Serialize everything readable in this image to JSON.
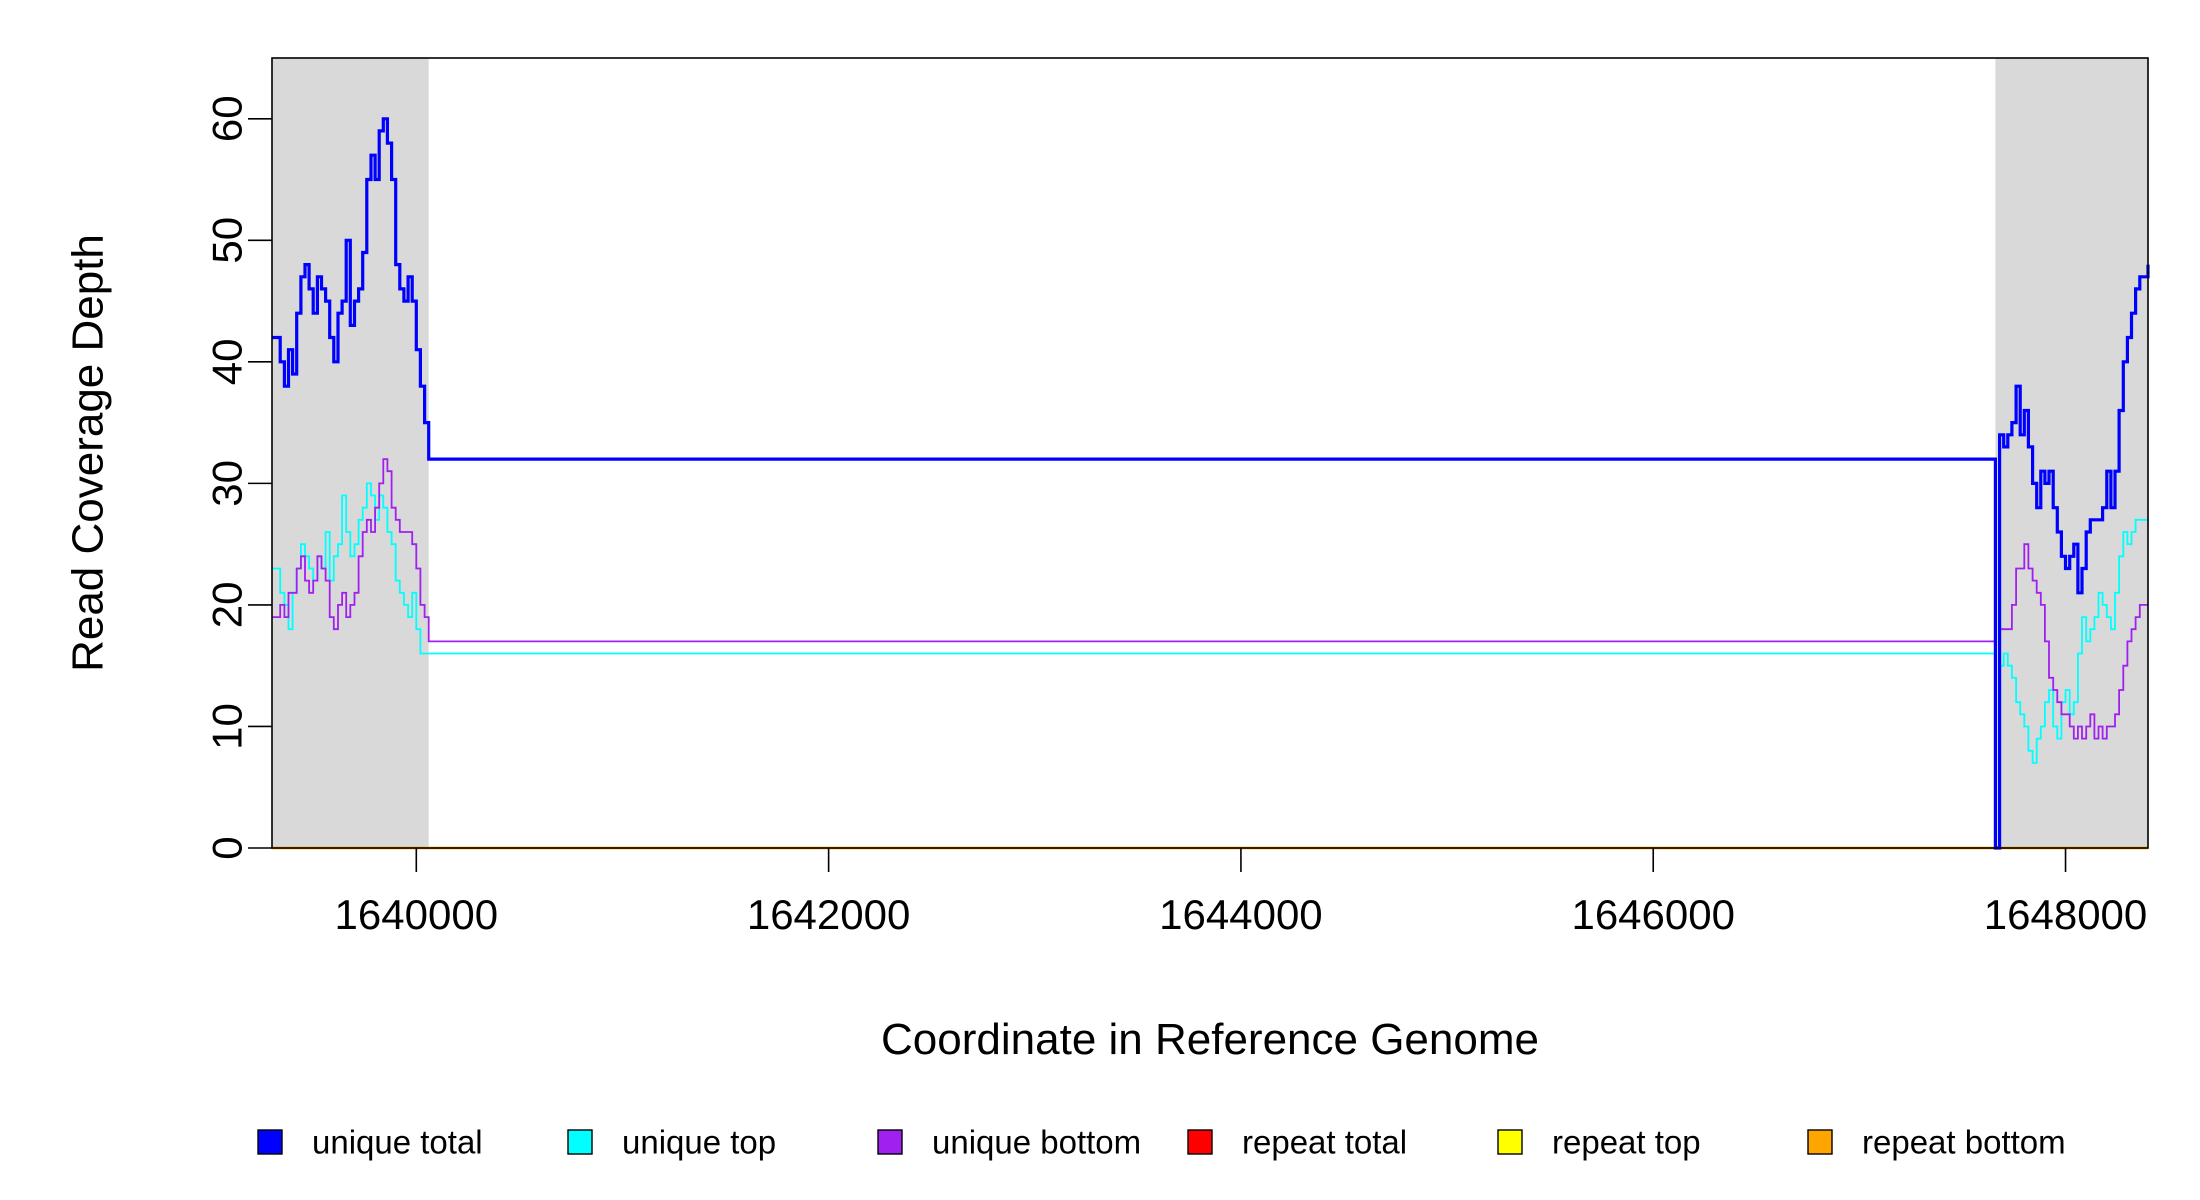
{
  "chart_data": {
    "type": "line",
    "title": "",
    "xlabel": "Coordinate in Reference Genome",
    "ylabel": "Read Coverage Depth",
    "xlim": [
      1639300,
      1648400
    ],
    "ylim": [
      0,
      65
    ],
    "x_ticks": [
      1640000,
      1642000,
      1644000,
      1646000,
      1648000
    ],
    "x_tick_labels": [
      "1640000",
      "1642000",
      "1644000",
      "1646000",
      "1648000"
    ],
    "y_ticks": [
      0,
      10,
      20,
      30,
      40,
      50,
      60
    ],
    "y_tick_labels": [
      "0",
      "10",
      "20",
      "30",
      "40",
      "50",
      "60"
    ],
    "grid": false,
    "legend_position": "bottom",
    "shaded_regions": [
      {
        "x_start": 1639300,
        "x_end": 1640060,
        "color": "#d9d9d9"
      },
      {
        "x_start": 1647660,
        "x_end": 1648400,
        "color": "#d9d9d9"
      }
    ],
    "series": [
      {
        "name": "unique total",
        "color": "#0000ff",
        "step": true,
        "x": [
          1639300,
          1639340,
          1639360,
          1639380,
          1639400,
          1639420,
          1639440,
          1639460,
          1639480,
          1639500,
          1639520,
          1639540,
          1639560,
          1639580,
          1639600,
          1639620,
          1639640,
          1639660,
          1639680,
          1639700,
          1639720,
          1639740,
          1639760,
          1639780,
          1639800,
          1639820,
          1639840,
          1639860,
          1639880,
          1639900,
          1639920,
          1639940,
          1639960,
          1639980,
          1640000,
          1640020,
          1640040,
          1640060,
          1647660,
          1647680,
          1647700,
          1647720,
          1647740,
          1647760,
          1647780,
          1647800,
          1647820,
          1647840,
          1647860,
          1647880,
          1647900,
          1647920,
          1647940,
          1647960,
          1647980,
          1648000,
          1648020,
          1648040,
          1648060,
          1648080,
          1648100,
          1648120,
          1648140,
          1648160,
          1648180,
          1648200,
          1648220,
          1648240,
          1648260,
          1648280,
          1648300,
          1648320,
          1648340,
          1648360,
          1648380,
          1648400
        ],
        "values": [
          42,
          40,
          38,
          41,
          39,
          44,
          47,
          48,
          46,
          44,
          47,
          46,
          45,
          42,
          40,
          44,
          45,
          50,
          43,
          45,
          46,
          49,
          55,
          57,
          55,
          59,
          60,
          58,
          55,
          48,
          46,
          45,
          47,
          45,
          41,
          38,
          35,
          32,
          0,
          34,
          33,
          34,
          35,
          38,
          34,
          36,
          33,
          30,
          28,
          31,
          30,
          31,
          28,
          26,
          24,
          23,
          24,
          25,
          21,
          23,
          26,
          27,
          27,
          27,
          28,
          31,
          28,
          31,
          36,
          40,
          42,
          44,
          46,
          47,
          47,
          48
        ]
      },
      {
        "name": "unique top",
        "color": "#00ffff",
        "step": true,
        "x": [
          1639300,
          1639340,
          1639360,
          1639380,
          1639400,
          1639420,
          1639440,
          1639460,
          1639480,
          1639500,
          1639520,
          1639540,
          1639560,
          1639580,
          1639600,
          1639620,
          1639640,
          1639660,
          1639680,
          1639700,
          1639720,
          1639740,
          1639760,
          1639780,
          1639800,
          1639820,
          1639840,
          1639860,
          1639880,
          1639900,
          1639920,
          1639940,
          1639960,
          1639980,
          1640000,
          1640020,
          1640040,
          1640060,
          1647660,
          1647680,
          1647700,
          1647720,
          1647740,
          1647760,
          1647780,
          1647800,
          1647820,
          1647840,
          1647860,
          1647880,
          1647900,
          1647920,
          1647940,
          1647960,
          1647980,
          1648000,
          1648020,
          1648040,
          1648060,
          1648080,
          1648100,
          1648120,
          1648140,
          1648160,
          1648180,
          1648200,
          1648220,
          1648240,
          1648260,
          1648280,
          1648300,
          1648320,
          1648340,
          1648360,
          1648380,
          1648400
        ],
        "values": [
          23,
          21,
          20,
          18,
          21,
          23,
          25,
          24,
          23,
          22,
          24,
          23,
          26,
          22,
          24,
          25,
          29,
          26,
          24,
          25,
          27,
          28,
          30,
          29,
          27,
          29,
          28,
          26,
          25,
          22,
          21,
          20,
          19,
          21,
          18,
          16,
          16,
          16,
          0,
          15,
          16,
          15,
          14,
          12,
          11,
          10,
          8,
          7,
          9,
          10,
          12,
          13,
          10,
          9,
          12,
          13,
          11,
          12,
          16,
          19,
          17,
          18,
          19,
          21,
          20,
          19,
          18,
          21,
          24,
          26,
          25,
          26,
          27,
          27,
          27,
          27
        ]
      },
      {
        "name": "unique bottom",
        "color": "#a020f0",
        "step": true,
        "x": [
          1639300,
          1639340,
          1639360,
          1639380,
          1639400,
          1639420,
          1639440,
          1639460,
          1639480,
          1639500,
          1639520,
          1639540,
          1639560,
          1639580,
          1639600,
          1639620,
          1639640,
          1639660,
          1639680,
          1639700,
          1639720,
          1639740,
          1639760,
          1639780,
          1639800,
          1639820,
          1639840,
          1639860,
          1639880,
          1639900,
          1639920,
          1639940,
          1639960,
          1639980,
          1640000,
          1640020,
          1640040,
          1640060,
          1647660,
          1647680,
          1647700,
          1647720,
          1647740,
          1647760,
          1647780,
          1647800,
          1647820,
          1647840,
          1647860,
          1647880,
          1647900,
          1647920,
          1647940,
          1647960,
          1647980,
          1648000,
          1648020,
          1648040,
          1648060,
          1648080,
          1648100,
          1648120,
          1648140,
          1648160,
          1648180,
          1648200,
          1648220,
          1648240,
          1648260,
          1648280,
          1648300,
          1648320,
          1648340,
          1648360,
          1648380,
          1648400
        ],
        "values": [
          19,
          20,
          19,
          21,
          21,
          23,
          24,
          22,
          21,
          22,
          24,
          23,
          22,
          19,
          18,
          20,
          21,
          19,
          20,
          21,
          24,
          26,
          27,
          26,
          28,
          30,
          32,
          31,
          28,
          27,
          26,
          26,
          26,
          25,
          23,
          20,
          19,
          17,
          0,
          18,
          18,
          18,
          20,
          23,
          23,
          25,
          23,
          22,
          21,
          20,
          17,
          14,
          13,
          12,
          11,
          11,
          10,
          9,
          10,
          9,
          10,
          11,
          9,
          10,
          9,
          10,
          10,
          11,
          13,
          15,
          17,
          18,
          19,
          20,
          20,
          20
        ]
      },
      {
        "name": "repeat total",
        "color": "#ff0000",
        "step": true,
        "x": [
          1639300,
          1648400
        ],
        "values": [
          0,
          0
        ]
      },
      {
        "name": "repeat top",
        "color": "#ffff00",
        "step": true,
        "x": [
          1639300,
          1648400
        ],
        "values": [
          0,
          0
        ]
      },
      {
        "name": "repeat bottom",
        "color": "#ffa500",
        "step": true,
        "x": [
          1639300,
          1648400
        ],
        "values": [
          0,
          0
        ]
      }
    ]
  }
}
